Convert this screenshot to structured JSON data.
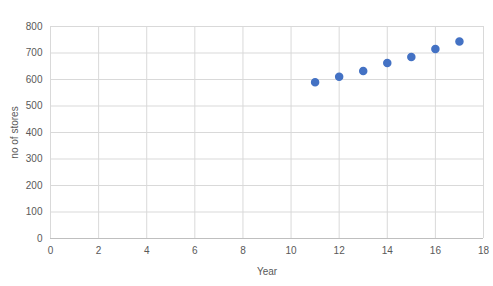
{
  "chart_data": {
    "type": "scatter",
    "x_label": "Year",
    "y_label": "no of stores",
    "x": [
      11,
      12,
      13,
      14,
      15,
      16,
      17
    ],
    "values": [
      590,
      610,
      632,
      662,
      685,
      715,
      743
    ],
    "color": "#4472c4",
    "marker": "circle",
    "xlim": [
      0,
      18
    ],
    "xticks": [
      0,
      2,
      4,
      6,
      8,
      10,
      12,
      14,
      16,
      18
    ],
    "ylim": [
      0,
      800
    ],
    "yticks": [
      0,
      100,
      200,
      300,
      400,
      500,
      600,
      700,
      800
    ],
    "grid": true
  }
}
